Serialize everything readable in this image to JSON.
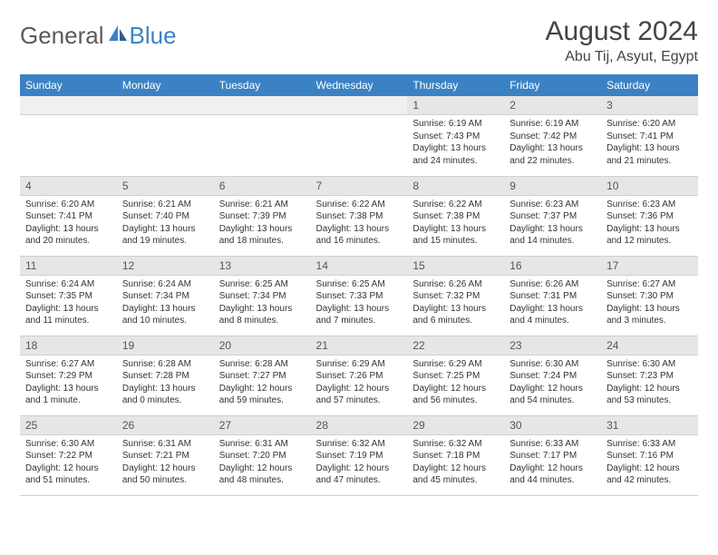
{
  "logo": {
    "text1": "General",
    "text2": "Blue"
  },
  "title": "August 2024",
  "location": "Abu Tij, Asyut, Egypt",
  "colors": {
    "header_bg": "#3b82c4",
    "header_text": "#ffffff",
    "daynum_bg": "#e6e6e6",
    "logo_gray": "#5a5a5a",
    "logo_blue": "#3b82c4"
  },
  "weekdays": [
    "Sunday",
    "Monday",
    "Tuesday",
    "Wednesday",
    "Thursday",
    "Friday",
    "Saturday"
  ],
  "weeks": [
    [
      {
        "day": null
      },
      {
        "day": null
      },
      {
        "day": null
      },
      {
        "day": null
      },
      {
        "day": 1,
        "sunrise": "6:19 AM",
        "sunset": "7:43 PM",
        "daylight": "13 hours and 24 minutes."
      },
      {
        "day": 2,
        "sunrise": "6:19 AM",
        "sunset": "7:42 PM",
        "daylight": "13 hours and 22 minutes."
      },
      {
        "day": 3,
        "sunrise": "6:20 AM",
        "sunset": "7:41 PM",
        "daylight": "13 hours and 21 minutes."
      }
    ],
    [
      {
        "day": 4,
        "sunrise": "6:20 AM",
        "sunset": "7:41 PM",
        "daylight": "13 hours and 20 minutes."
      },
      {
        "day": 5,
        "sunrise": "6:21 AM",
        "sunset": "7:40 PM",
        "daylight": "13 hours and 19 minutes."
      },
      {
        "day": 6,
        "sunrise": "6:21 AM",
        "sunset": "7:39 PM",
        "daylight": "13 hours and 18 minutes."
      },
      {
        "day": 7,
        "sunrise": "6:22 AM",
        "sunset": "7:38 PM",
        "daylight": "13 hours and 16 minutes."
      },
      {
        "day": 8,
        "sunrise": "6:22 AM",
        "sunset": "7:38 PM",
        "daylight": "13 hours and 15 minutes."
      },
      {
        "day": 9,
        "sunrise": "6:23 AM",
        "sunset": "7:37 PM",
        "daylight": "13 hours and 14 minutes."
      },
      {
        "day": 10,
        "sunrise": "6:23 AM",
        "sunset": "7:36 PM",
        "daylight": "13 hours and 12 minutes."
      }
    ],
    [
      {
        "day": 11,
        "sunrise": "6:24 AM",
        "sunset": "7:35 PM",
        "daylight": "13 hours and 11 minutes."
      },
      {
        "day": 12,
        "sunrise": "6:24 AM",
        "sunset": "7:34 PM",
        "daylight": "13 hours and 10 minutes."
      },
      {
        "day": 13,
        "sunrise": "6:25 AM",
        "sunset": "7:34 PM",
        "daylight": "13 hours and 8 minutes."
      },
      {
        "day": 14,
        "sunrise": "6:25 AM",
        "sunset": "7:33 PM",
        "daylight": "13 hours and 7 minutes."
      },
      {
        "day": 15,
        "sunrise": "6:26 AM",
        "sunset": "7:32 PM",
        "daylight": "13 hours and 6 minutes."
      },
      {
        "day": 16,
        "sunrise": "6:26 AM",
        "sunset": "7:31 PM",
        "daylight": "13 hours and 4 minutes."
      },
      {
        "day": 17,
        "sunrise": "6:27 AM",
        "sunset": "7:30 PM",
        "daylight": "13 hours and 3 minutes."
      }
    ],
    [
      {
        "day": 18,
        "sunrise": "6:27 AM",
        "sunset": "7:29 PM",
        "daylight": "13 hours and 1 minute."
      },
      {
        "day": 19,
        "sunrise": "6:28 AM",
        "sunset": "7:28 PM",
        "daylight": "13 hours and 0 minutes."
      },
      {
        "day": 20,
        "sunrise": "6:28 AM",
        "sunset": "7:27 PM",
        "daylight": "12 hours and 59 minutes."
      },
      {
        "day": 21,
        "sunrise": "6:29 AM",
        "sunset": "7:26 PM",
        "daylight": "12 hours and 57 minutes."
      },
      {
        "day": 22,
        "sunrise": "6:29 AM",
        "sunset": "7:25 PM",
        "daylight": "12 hours and 56 minutes."
      },
      {
        "day": 23,
        "sunrise": "6:30 AM",
        "sunset": "7:24 PM",
        "daylight": "12 hours and 54 minutes."
      },
      {
        "day": 24,
        "sunrise": "6:30 AM",
        "sunset": "7:23 PM",
        "daylight": "12 hours and 53 minutes."
      }
    ],
    [
      {
        "day": 25,
        "sunrise": "6:30 AM",
        "sunset": "7:22 PM",
        "daylight": "12 hours and 51 minutes."
      },
      {
        "day": 26,
        "sunrise": "6:31 AM",
        "sunset": "7:21 PM",
        "daylight": "12 hours and 50 minutes."
      },
      {
        "day": 27,
        "sunrise": "6:31 AM",
        "sunset": "7:20 PM",
        "daylight": "12 hours and 48 minutes."
      },
      {
        "day": 28,
        "sunrise": "6:32 AM",
        "sunset": "7:19 PM",
        "daylight": "12 hours and 47 minutes."
      },
      {
        "day": 29,
        "sunrise": "6:32 AM",
        "sunset": "7:18 PM",
        "daylight": "12 hours and 45 minutes."
      },
      {
        "day": 30,
        "sunrise": "6:33 AM",
        "sunset": "7:17 PM",
        "daylight": "12 hours and 44 minutes."
      },
      {
        "day": 31,
        "sunrise": "6:33 AM",
        "sunset": "7:16 PM",
        "daylight": "12 hours and 42 minutes."
      }
    ]
  ]
}
